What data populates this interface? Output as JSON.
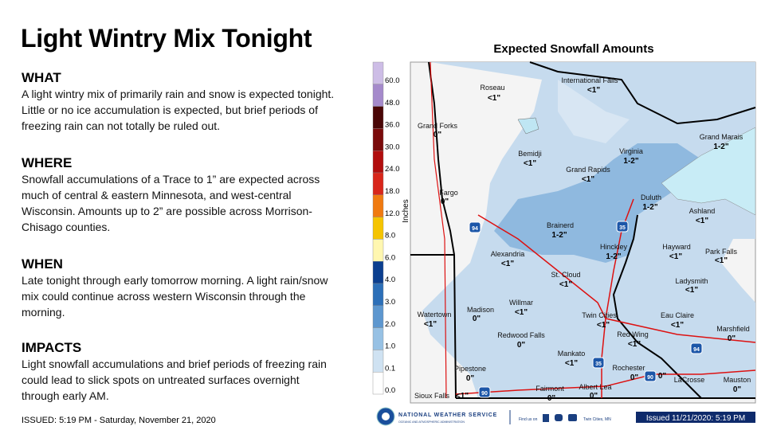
{
  "header": {
    "title": "Light Wintry Mix Tonight"
  },
  "sections": [
    {
      "heading": "WHAT",
      "lines": [
        "A light wintry mix of primarily rain and snow is expected tonight.",
        "Little or no ice accumulation is expected, but brief periods of",
        "freezing rain can not totally be ruled out."
      ]
    },
    {
      "heading": "WHERE",
      "lines": [
        "Snowfall accumulations of a Trace to 1” are expected across",
        "much of central & eastern Minnesota, and west-central",
        "Wisconsin. Amounts up to 2” are possible across  Morrison-",
        "Chisago counties."
      ]
    },
    {
      "heading": "WHEN",
      "lines": [
        "Late tonight through early tomorrow morning. A light rain/snow",
        "mix could continue across  western Wisconsin through the",
        "morning."
      ]
    },
    {
      "heading": "IMPACTS",
      "lines": [
        "Light snowfall accumulations and brief periods of freezing rain",
        "could lead to slick spots on untreated surfaces overnight",
        "through early AM."
      ]
    }
  ],
  "issued": "ISSUED: 5:19 PM - Saturday, November 21, 2020",
  "map": {
    "title": "Expected Snowfall Amounts",
    "legend": {
      "unit": "Inches",
      "labels": [
        "60.0",
        "48.0",
        "36.0",
        "30.0",
        "24.0",
        "18.0",
        "12.0",
        "8.0",
        "6.0",
        "4.0",
        "3.0",
        "2.0",
        "1.0",
        "0.1",
        "0.0"
      ]
    },
    "places": [
      {
        "name": "Roseau",
        "amount": "<1\""
      },
      {
        "name": "International Falls",
        "amount": "<1\""
      },
      {
        "name": "Grand Forks",
        "amount": "0\""
      },
      {
        "name": "Grand Marais",
        "amount": "1-2\""
      },
      {
        "name": "Virginia",
        "amount": "1-2\""
      },
      {
        "name": "Bemidji",
        "amount": "<1\""
      },
      {
        "name": "Grand Rapids",
        "amount": "<1\""
      },
      {
        "name": "Fargo",
        "amount": "0\""
      },
      {
        "name": "Duluth",
        "amount": "1-2\""
      },
      {
        "name": "Ashland",
        "amount": "<1\""
      },
      {
        "name": "Brainerd",
        "amount": "1-2\""
      },
      {
        "name": "Hinckley",
        "amount": "1-2\""
      },
      {
        "name": "Hayward",
        "amount": "<1\""
      },
      {
        "name": "Park Falls",
        "amount": "<1\""
      },
      {
        "name": "Alexandria",
        "amount": "<1\""
      },
      {
        "name": "St. Cloud",
        "amount": "<1\""
      },
      {
        "name": "Ladysmith",
        "amount": "<1\""
      },
      {
        "name": "Willmar",
        "amount": "<1\""
      },
      {
        "name": "Madison",
        "amount": "0\""
      },
      {
        "name": "Watertown",
        "amount": "<1\""
      },
      {
        "name": "Twin Cities",
        "amount": "<1\""
      },
      {
        "name": "Eau Claire",
        "amount": "<1\""
      },
      {
        "name": "Marshfield",
        "amount": "0\""
      },
      {
        "name": "Redwood Falls",
        "amount": "0\""
      },
      {
        "name": "Red Wing",
        "amount": "<1\""
      },
      {
        "name": "Mankato",
        "amount": "<1\""
      },
      {
        "name": "Pipestone",
        "amount": "0\""
      },
      {
        "name": "Rochester",
        "amount": "0\""
      },
      {
        "name": "LaCrosse",
        "amount": "0\""
      },
      {
        "name": "Mauston",
        "amount": "0\""
      },
      {
        "name": "Fairmont",
        "amount": "0\""
      },
      {
        "name": "Albert Lea",
        "amount": "0\""
      },
      {
        "name": "Sioux Falls",
        "amount": "<1\""
      }
    ],
    "highways": [
      "94",
      "35",
      "35",
      "90",
      "94",
      "90"
    ]
  },
  "footer": {
    "agency": "NATIONAL WEATHER SERVICE",
    "agency_sub": "OCEANIC AND ATMOSPHERIC ADMINISTRATION",
    "find_us": "Find us on",
    "office": "Twin Cities, MN",
    "issued_box": "Issued 11/21/2020: 5:19 PM"
  }
}
